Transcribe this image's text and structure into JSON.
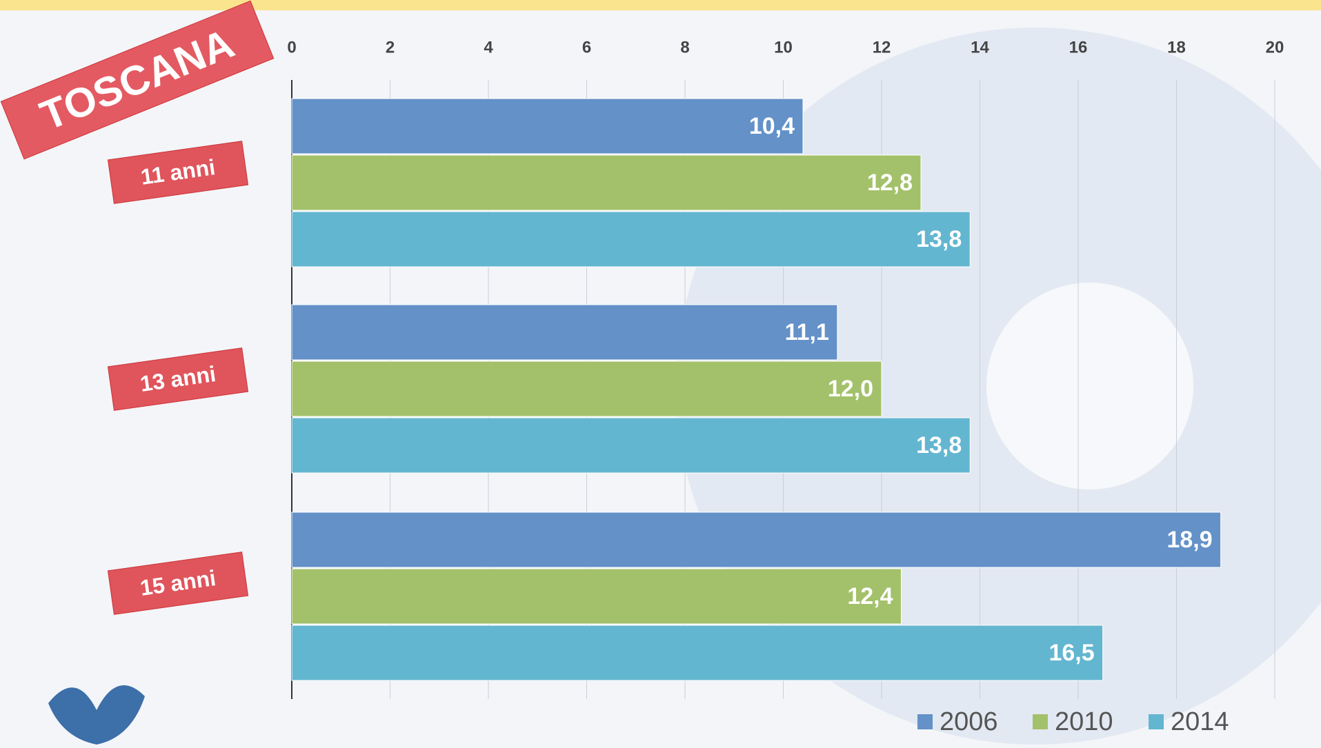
{
  "chart_data": {
    "type": "barh",
    "title": "TOSCANA",
    "categories": [
      "11 anni",
      "13 anni",
      "15 anni"
    ],
    "series": [
      {
        "name": "2006",
        "color": "#6391c8",
        "values": [
          10.4,
          11.1,
          18.9
        ],
        "value_labels": [
          "10,4",
          "11,1",
          "18,9"
        ]
      },
      {
        "name": "2010",
        "color": "#a3c16a",
        "values": [
          12.8,
          12.0,
          12.4
        ],
        "value_labels": [
          "12,8",
          "12,0",
          "12,4"
        ]
      },
      {
        "name": "2014",
        "color": "#63b6d0",
        "values": [
          13.8,
          13.8,
          16.5
        ],
        "value_labels": [
          "13,8",
          "13,8",
          "16,5"
        ]
      }
    ],
    "xlim": [
      0,
      20
    ],
    "xticks": [
      0,
      2,
      4,
      6,
      8,
      10,
      12,
      14,
      16,
      18,
      20
    ],
    "grid": true,
    "legend": "bottom-right"
  }
}
